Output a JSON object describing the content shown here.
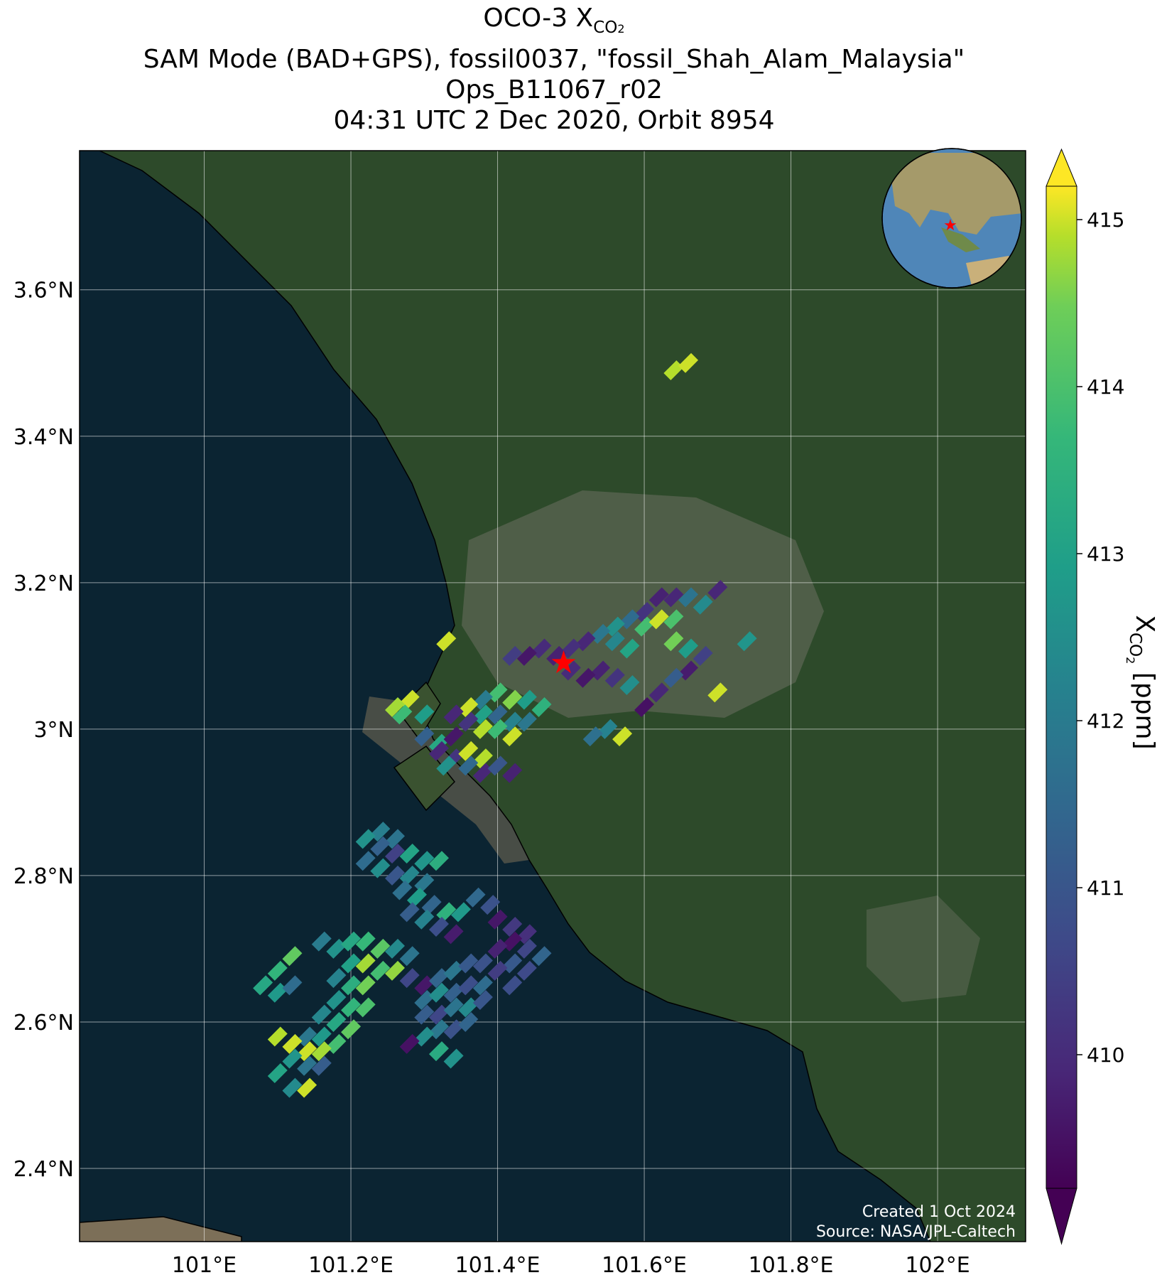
{
  "title": {
    "line1_main": "OCO-3 X",
    "line1_sub": "CO",
    "line1_sub2": "2",
    "line2": "SAM Mode (BAD+GPS), fossil0037, \"fossil_Shah_Alam_Malaysia\"",
    "line3": "Ops_B11067_r02",
    "line4": "04:31 UTC 2 Dec 2020, Orbit 8954"
  },
  "map": {
    "lon_ticks": [
      "101°E",
      "101.2°E",
      "101.4°E",
      "101.6°E",
      "101.8°E",
      "102°E"
    ],
    "lon_values": [
      101.0,
      101.2,
      101.4,
      101.6,
      101.8,
      102.0
    ],
    "lat_ticks": [
      "2.4°N",
      "2.6°N",
      "2.8°N",
      "3°N",
      "3.2°N",
      "3.4°N",
      "3.6°N"
    ],
    "lat_values": [
      2.4,
      2.6,
      2.8,
      3.0,
      3.2,
      3.4,
      3.6
    ],
    "extent": {
      "lon_min": 100.83,
      "lon_max": 102.12,
      "lat_min": 2.3,
      "lat_max": 3.79
    },
    "target_marker": {
      "name": "red-star-target",
      "lon": 101.49,
      "lat": 3.09,
      "color": "#ff0000"
    },
    "colors": {
      "sea": "#0b2432",
      "land": "#2d4a2a",
      "urban": "#6b7060",
      "coast": "#000000",
      "grid": "#ffffff"
    }
  },
  "inset_globe": {
    "label": "globe-inset",
    "center_hint": "Southeast Asia"
  },
  "colorbar": {
    "label_main": "X",
    "label_sub": "CO",
    "label_sub2": "2",
    "label_unit": " [ppm]",
    "ticks": [
      "410",
      "411",
      "412",
      "413",
      "414",
      "415"
    ],
    "tick_values": [
      410,
      411,
      412,
      413,
      414,
      415
    ],
    "vmin": 409.2,
    "vmax": 415.2,
    "extend": "both",
    "colormap": "viridis"
  },
  "credits": {
    "line1": "Created 1 Oct 2024",
    "line2": "Source: NASA/JPL-Caltech"
  },
  "soundings": [
    {
      "lon": 101.64,
      "lat": 3.49,
      "v": 414.9
    },
    {
      "lon": 101.66,
      "lat": 3.5,
      "v": 415.0
    },
    {
      "lon": 101.62,
      "lat": 3.18,
      "v": 409.8
    },
    {
      "lon": 101.64,
      "lat": 3.18,
      "v": 409.9
    },
    {
      "lon": 101.6,
      "lat": 3.16,
      "v": 410.2
    },
    {
      "lon": 101.58,
      "lat": 3.15,
      "v": 411.6
    },
    {
      "lon": 101.56,
      "lat": 3.14,
      "v": 412.6
    },
    {
      "lon": 101.54,
      "lat": 3.13,
      "v": 411.9
    },
    {
      "lon": 101.52,
      "lat": 3.12,
      "v": 409.9
    },
    {
      "lon": 101.5,
      "lat": 3.11,
      "v": 410.1
    },
    {
      "lon": 101.48,
      "lat": 3.1,
      "v": 409.8
    },
    {
      "lon": 101.46,
      "lat": 3.11,
      "v": 410.0
    },
    {
      "lon": 101.44,
      "lat": 3.1,
      "v": 409.6
    },
    {
      "lon": 101.42,
      "lat": 3.1,
      "v": 410.4
    },
    {
      "lon": 101.56,
      "lat": 3.12,
      "v": 412.3
    },
    {
      "lon": 101.58,
      "lat": 3.11,
      "v": 413.1
    },
    {
      "lon": 101.6,
      "lat": 3.14,
      "v": 413.9
    },
    {
      "lon": 101.62,
      "lat": 3.15,
      "v": 415.0
    },
    {
      "lon": 101.64,
      "lat": 3.15,
      "v": 414.0
    },
    {
      "lon": 101.66,
      "lat": 3.18,
      "v": 411.8
    },
    {
      "lon": 101.68,
      "lat": 3.17,
      "v": 412.4
    },
    {
      "lon": 101.7,
      "lat": 3.19,
      "v": 409.9
    },
    {
      "lon": 101.64,
      "lat": 3.12,
      "v": 414.5
    },
    {
      "lon": 101.66,
      "lat": 3.11,
      "v": 412.9
    },
    {
      "lon": 101.68,
      "lat": 3.1,
      "v": 410.5
    },
    {
      "lon": 101.66,
      "lat": 3.08,
      "v": 409.7
    },
    {
      "lon": 101.64,
      "lat": 3.07,
      "v": 411.2
    },
    {
      "lon": 101.62,
      "lat": 3.05,
      "v": 409.9
    },
    {
      "lon": 101.6,
      "lat": 3.03,
      "v": 409.5
    },
    {
      "lon": 101.74,
      "lat": 3.12,
      "v": 412.7
    },
    {
      "lon": 101.7,
      "lat": 3.05,
      "v": 415.0
    },
    {
      "lon": 101.58,
      "lat": 3.06,
      "v": 412.5
    },
    {
      "lon": 101.56,
      "lat": 3.07,
      "v": 410.2
    },
    {
      "lon": 101.54,
      "lat": 3.08,
      "v": 409.8
    },
    {
      "lon": 101.52,
      "lat": 3.07,
      "v": 409.6
    },
    {
      "lon": 101.5,
      "lat": 3.08,
      "v": 410.0
    },
    {
      "lon": 101.55,
      "lat": 3.0,
      "v": 412.2
    },
    {
      "lon": 101.53,
      "lat": 2.99,
      "v": 411.7
    },
    {
      "lon": 101.57,
      "lat": 2.99,
      "v": 415.0
    },
    {
      "lon": 101.4,
      "lat": 3.05,
      "v": 413.9
    },
    {
      "lon": 101.42,
      "lat": 3.04,
      "v": 414.6
    },
    {
      "lon": 101.44,
      "lat": 3.04,
      "v": 412.9
    },
    {
      "lon": 101.46,
      "lat": 3.03,
      "v": 413.5
    },
    {
      "lon": 101.38,
      "lat": 3.04,
      "v": 412.0
    },
    {
      "lon": 101.36,
      "lat": 3.03,
      "v": 415.0
    },
    {
      "lon": 101.38,
      "lat": 3.02,
      "v": 413.0
    },
    {
      "lon": 101.4,
      "lat": 3.02,
      "v": 411.4
    },
    {
      "lon": 101.42,
      "lat": 3.01,
      "v": 412.2
    },
    {
      "lon": 101.44,
      "lat": 3.01,
      "v": 411.9
    },
    {
      "lon": 101.34,
      "lat": 3.02,
      "v": 409.9
    },
    {
      "lon": 101.36,
      "lat": 3.01,
      "v": 410.2
    },
    {
      "lon": 101.38,
      "lat": 3.0,
      "v": 414.9
    },
    {
      "lon": 101.4,
      "lat": 3.0,
      "v": 413.8
    },
    {
      "lon": 101.42,
      "lat": 2.99,
      "v": 415.0
    },
    {
      "lon": 101.32,
      "lat": 2.98,
      "v": 413.2
    },
    {
      "lon": 101.3,
      "lat": 2.99,
      "v": 411.3
    },
    {
      "lon": 101.34,
      "lat": 2.99,
      "v": 409.6
    },
    {
      "lon": 101.28,
      "lat": 3.04,
      "v": 415.0
    },
    {
      "lon": 101.26,
      "lat": 3.03,
      "v": 414.8
    },
    {
      "lon": 101.27,
      "lat": 3.02,
      "v": 413.8
    },
    {
      "lon": 101.3,
      "lat": 3.02,
      "v": 412.9
    },
    {
      "lon": 101.33,
      "lat": 3.12,
      "v": 415.0
    },
    {
      "lon": 101.32,
      "lat": 2.97,
      "v": 409.9
    },
    {
      "lon": 101.34,
      "lat": 2.96,
      "v": 410.2
    },
    {
      "lon": 101.36,
      "lat": 2.97,
      "v": 415.0
    },
    {
      "lon": 101.38,
      "lat": 2.96,
      "v": 414.9
    },
    {
      "lon": 101.36,
      "lat": 2.95,
      "v": 411.5
    },
    {
      "lon": 101.38,
      "lat": 2.94,
      "v": 409.9
    },
    {
      "lon": 101.4,
      "lat": 2.95,
      "v": 411.0
    },
    {
      "lon": 101.33,
      "lat": 2.95,
      "v": 412.6
    },
    {
      "lon": 101.42,
      "lat": 2.94,
      "v": 409.8
    },
    {
      "lon": 101.24,
      "lat": 2.86,
      "v": 412.1
    },
    {
      "lon": 101.26,
      "lat": 2.85,
      "v": 411.8
    },
    {
      "lon": 101.22,
      "lat": 2.85,
      "v": 412.6
    },
    {
      "lon": 101.24,
      "lat": 2.84,
      "v": 411.3
    },
    {
      "lon": 101.26,
      "lat": 2.83,
      "v": 410.5
    },
    {
      "lon": 101.28,
      "lat": 2.83,
      "v": 413.1
    },
    {
      "lon": 101.3,
      "lat": 2.82,
      "v": 412.7
    },
    {
      "lon": 101.32,
      "lat": 2.82,
      "v": 413.4
    },
    {
      "lon": 101.22,
      "lat": 2.82,
      "v": 411.6
    },
    {
      "lon": 101.24,
      "lat": 2.81,
      "v": 412.5
    },
    {
      "lon": 101.26,
      "lat": 2.8,
      "v": 411.0
    },
    {
      "lon": 101.28,
      "lat": 2.8,
      "v": 412.3
    },
    {
      "lon": 101.3,
      "lat": 2.79,
      "v": 411.9
    },
    {
      "lon": 101.27,
      "lat": 2.78,
      "v": 411.7
    },
    {
      "lon": 101.29,
      "lat": 2.77,
      "v": 412.9
    },
    {
      "lon": 101.31,
      "lat": 2.76,
      "v": 411.4
    },
    {
      "lon": 101.33,
      "lat": 2.75,
      "v": 413.5
    },
    {
      "lon": 101.35,
      "lat": 2.75,
      "v": 412.8
    },
    {
      "lon": 101.28,
      "lat": 2.75,
      "v": 411.2
    },
    {
      "lon": 101.3,
      "lat": 2.74,
      "v": 412.2
    },
    {
      "lon": 101.32,
      "lat": 2.73,
      "v": 410.8
    },
    {
      "lon": 101.34,
      "lat": 2.72,
      "v": 409.7
    },
    {
      "lon": 101.37,
      "lat": 2.77,
      "v": 411.5
    },
    {
      "lon": 101.39,
      "lat": 2.76,
      "v": 410.9
    },
    {
      "lon": 101.4,
      "lat": 2.74,
      "v": 409.6
    },
    {
      "lon": 101.42,
      "lat": 2.73,
      "v": 410.3
    },
    {
      "lon": 101.44,
      "lat": 2.72,
      "v": 410.1
    },
    {
      "lon": 101.42,
      "lat": 2.71,
      "v": 409.5
    },
    {
      "lon": 101.44,
      "lat": 2.7,
      "v": 410.6
    },
    {
      "lon": 101.46,
      "lat": 2.69,
      "v": 411.4
    },
    {
      "lon": 101.4,
      "lat": 2.7,
      "v": 409.8
    },
    {
      "lon": 101.42,
      "lat": 2.68,
      "v": 411.1
    },
    {
      "lon": 101.44,
      "lat": 2.67,
      "v": 410.7
    },
    {
      "lon": 101.4,
      "lat": 2.67,
      "v": 410.4
    },
    {
      "lon": 101.42,
      "lat": 2.65,
      "v": 410.8
    },
    {
      "lon": 101.16,
      "lat": 2.71,
      "v": 412.0
    },
    {
      "lon": 101.18,
      "lat": 2.7,
      "v": 412.6
    },
    {
      "lon": 101.2,
      "lat": 2.71,
      "v": 413.2
    },
    {
      "lon": 101.22,
      "lat": 2.71,
      "v": 413.7
    },
    {
      "lon": 101.24,
      "lat": 2.7,
      "v": 414.2
    },
    {
      "lon": 101.26,
      "lat": 2.7,
      "v": 412.4
    },
    {
      "lon": 101.28,
      "lat": 2.69,
      "v": 411.8
    },
    {
      "lon": 101.2,
      "lat": 2.68,
      "v": 413.0
    },
    {
      "lon": 101.22,
      "lat": 2.68,
      "v": 414.8
    },
    {
      "lon": 101.24,
      "lat": 2.67,
      "v": 413.9
    },
    {
      "lon": 101.26,
      "lat": 2.67,
      "v": 414.7
    },
    {
      "lon": 101.12,
      "lat": 2.69,
      "v": 414.3
    },
    {
      "lon": 101.1,
      "lat": 2.67,
      "v": 413.6
    },
    {
      "lon": 101.08,
      "lat": 2.65,
      "v": 413.2
    },
    {
      "lon": 101.1,
      "lat": 2.64,
      "v": 412.8
    },
    {
      "lon": 101.12,
      "lat": 2.65,
      "v": 411.6
    },
    {
      "lon": 101.18,
      "lat": 2.66,
      "v": 412.2
    },
    {
      "lon": 101.2,
      "lat": 2.65,
      "v": 413.4
    },
    {
      "lon": 101.22,
      "lat": 2.65,
      "v": 414.5
    },
    {
      "lon": 101.18,
      "lat": 2.63,
      "v": 412.6
    },
    {
      "lon": 101.2,
      "lat": 2.62,
      "v": 413.6
    },
    {
      "lon": 101.22,
      "lat": 2.62,
      "v": 414.0
    },
    {
      "lon": 101.16,
      "lat": 2.61,
      "v": 412.3
    },
    {
      "lon": 101.18,
      "lat": 2.6,
      "v": 413.2
    },
    {
      "lon": 101.2,
      "lat": 2.59,
      "v": 414.3
    },
    {
      "lon": 101.14,
      "lat": 2.58,
      "v": 411.9
    },
    {
      "lon": 101.16,
      "lat": 2.58,
      "v": 412.8
    },
    {
      "lon": 101.18,
      "lat": 2.57,
      "v": 413.9
    },
    {
      "lon": 101.1,
      "lat": 2.58,
      "v": 414.9
    },
    {
      "lon": 101.12,
      "lat": 2.57,
      "v": 415.0
    },
    {
      "lon": 101.14,
      "lat": 2.56,
      "v": 415.0
    },
    {
      "lon": 101.16,
      "lat": 2.56,
      "v": 414.8
    },
    {
      "lon": 101.12,
      "lat": 2.55,
      "v": 412.7
    },
    {
      "lon": 101.14,
      "lat": 2.54,
      "v": 411.8
    },
    {
      "lon": 101.16,
      "lat": 2.54,
      "v": 411.2
    },
    {
      "lon": 101.1,
      "lat": 2.53,
      "v": 413.1
    },
    {
      "lon": 101.12,
      "lat": 2.51,
      "v": 412.4
    },
    {
      "lon": 101.14,
      "lat": 2.51,
      "v": 415.0
    },
    {
      "lon": 101.28,
      "lat": 2.66,
      "v": 410.6
    },
    {
      "lon": 101.3,
      "lat": 2.65,
      "v": 409.6
    },
    {
      "lon": 101.32,
      "lat": 2.66,
      "v": 411.4
    },
    {
      "lon": 101.34,
      "lat": 2.67,
      "v": 411.9
    },
    {
      "lon": 101.36,
      "lat": 2.68,
      "v": 411.1
    },
    {
      "lon": 101.38,
      "lat": 2.68,
      "v": 410.9
    },
    {
      "lon": 101.3,
      "lat": 2.63,
      "v": 411.7
    },
    {
      "lon": 101.32,
      "lat": 2.64,
      "v": 412.5
    },
    {
      "lon": 101.34,
      "lat": 2.64,
      "v": 411.3
    },
    {
      "lon": 101.36,
      "lat": 2.65,
      "v": 410.8
    },
    {
      "lon": 101.38,
      "lat": 2.65,
      "v": 411.6
    },
    {
      "lon": 101.3,
      "lat": 2.61,
      "v": 411.2
    },
    {
      "lon": 101.32,
      "lat": 2.61,
      "v": 410.6
    },
    {
      "lon": 101.34,
      "lat": 2.62,
      "v": 411.8
    },
    {
      "lon": 101.36,
      "lat": 2.62,
      "v": 412.4
    },
    {
      "lon": 101.38,
      "lat": 2.63,
      "v": 411.0
    },
    {
      "lon": 101.32,
      "lat": 2.59,
      "v": 411.9
    },
    {
      "lon": 101.34,
      "lat": 2.59,
      "v": 410.9
    },
    {
      "lon": 101.36,
      "lat": 2.6,
      "v": 411.4
    },
    {
      "lon": 101.3,
      "lat": 2.58,
      "v": 412.5
    },
    {
      "lon": 101.32,
      "lat": 2.56,
      "v": 413.3
    },
    {
      "lon": 101.34,
      "lat": 2.55,
      "v": 412.6
    },
    {
      "lon": 101.28,
      "lat": 2.57,
      "v": 409.5
    }
  ]
}
